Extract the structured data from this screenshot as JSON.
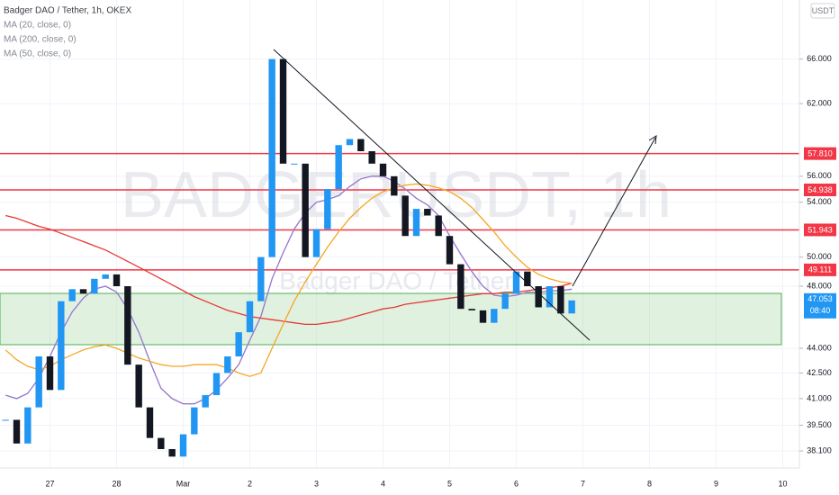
{
  "chart_data": {
    "type": "candlestick",
    "log_scale": true,
    "grid": true,
    "grid_color": "#f0f3fa",
    "watermark": {
      "symbol": "BADGERUSDT, 1h",
      "description": "Badger DAO / Tether"
    },
    "currency": "USDT",
    "countdown": "08:40",
    "ylim": [
      37.2,
      71.7
    ],
    "yticks": [
      {
        "value": 66,
        "label": "66.000"
      },
      {
        "value": 62,
        "label": "62.000"
      },
      {
        "value": 56,
        "label": "56.000"
      },
      {
        "value": 54,
        "label": "54.000"
      },
      {
        "value": 50,
        "label": "50.000"
      },
      {
        "value": 48,
        "label": "48.000"
      },
      {
        "value": 44,
        "label": "44.000"
      },
      {
        "value": 42.5,
        "label": "42.500"
      },
      {
        "value": 41,
        "label": "41.000"
      },
      {
        "value": 39.5,
        "label": "39.500"
      },
      {
        "value": 38.1,
        "label": "38.100"
      }
    ],
    "levels": [
      {
        "value": 57.81,
        "label": "57.810"
      },
      {
        "value": 54.938,
        "label": "54.938"
      },
      {
        "value": 51.943,
        "label": "51.943"
      },
      {
        "value": 49.111,
        "label": "49.111"
      }
    ],
    "level_color": "#f23645",
    "categories": [
      null,
      null,
      null,
      null,
      "27",
      null,
      null,
      null,
      null,
      null,
      "28",
      null,
      null,
      null,
      null,
      null,
      "Mar",
      null,
      null,
      null,
      null,
      null,
      "2",
      null,
      null,
      null,
      null,
      null,
      "3",
      null,
      null,
      null,
      null,
      null,
      "4",
      null,
      null,
      null,
      null,
      null,
      "5",
      null,
      null,
      null,
      null,
      null,
      "6",
      null,
      null,
      null,
      null,
      null,
      "7",
      null,
      null,
      null,
      null,
      null,
      "8",
      null,
      null,
      null,
      null,
      null,
      "9",
      null,
      null,
      null,
      null,
      null,
      "10",
      null
    ],
    "series": [
      {
        "name": "Badger DAO / Tether, 1h, OKEX",
        "up_color": "#2196f3",
        "down_color": "#131722",
        "values": [
          39.8,
          38.5,
          40.5,
          43.5,
          41.5,
          47,
          47.8,
          47.5,
          48.5,
          48.8,
          48,
          43,
          40.5,
          38.8,
          38.2,
          37.8,
          39,
          40.5,
          41.2,
          42.5,
          43.5,
          45,
          47,
          50,
          66,
          57,
          57,
          50,
          52,
          55,
          58.5,
          59,
          58,
          57,
          56,
          54.5,
          51.5,
          53.5,
          53,
          51.5,
          49.5,
          46.5,
          46.4,
          45.6,
          46.5,
          47.5,
          49,
          48,
          46.6,
          48,
          46.2,
          47.053,
          null,
          null,
          null,
          null,
          null,
          null,
          null,
          null,
          null,
          null,
          null,
          null,
          null,
          null,
          null,
          null,
          null,
          null,
          null,
          null
        ]
      },
      {
        "name": "MA (20, close, 0)",
        "color": "#9575cd",
        "values": [
          41.2,
          41,
          41.3,
          42.2,
          43.5,
          45,
          46.3,
          47.2,
          47.8,
          48,
          47.6,
          46.5,
          45,
          43.2,
          41.6,
          41,
          40.7,
          40.7,
          41,
          41.5,
          42.2,
          43,
          44.5,
          46,
          48.5,
          50.3,
          52,
          53.2,
          54,
          54.2,
          54.5,
          55.2,
          55.8,
          56,
          56,
          55.6,
          55,
          54.3,
          53.8,
          53,
          51.5,
          50.2,
          49,
          48,
          47.4,
          47.3,
          47.4,
          47.6,
          47.6,
          47.7,
          47.7,
          47.8,
          null,
          null,
          null,
          null,
          null,
          null,
          null,
          null,
          null,
          null,
          null,
          null,
          null,
          null,
          null,
          null,
          null,
          null,
          null,
          null
        ]
      },
      {
        "name": "MA (200, close, 0)",
        "color": "#e53935",
        "values": [
          53,
          52.8,
          52.5,
          52.2,
          52,
          51.7,
          51.4,
          51.1,
          50.8,
          50.5,
          50.1,
          49.7,
          49.3,
          48.9,
          48.5,
          48.1,
          47.7,
          47.3,
          47,
          46.7,
          46.4,
          46.2,
          46,
          45.9,
          45.8,
          45.7,
          45.6,
          45.5,
          45.5,
          45.6,
          45.7,
          45.9,
          46.1,
          46.3,
          46.5,
          46.6,
          46.8,
          46.9,
          47,
          47.1,
          47.2,
          47.3,
          47.4,
          47.5,
          47.5,
          47.6,
          47.6,
          47.7,
          47.8,
          47.9,
          48,
          48.2,
          null,
          null,
          null,
          null,
          null,
          null,
          null,
          null,
          null,
          null,
          null,
          null,
          null,
          null,
          null,
          null,
          null,
          null,
          null,
          null
        ]
      },
      {
        "name": "MA (50, close, 0)",
        "color": "#f5a623",
        "values": [
          43.9,
          43.3,
          42.9,
          42.7,
          42.9,
          43.3,
          43.6,
          43.9,
          44.1,
          44.2,
          44,
          43.7,
          43.4,
          43.2,
          43,
          42.9,
          42.9,
          43,
          43,
          43,
          42.8,
          42.5,
          42.3,
          42.5,
          44,
          45.5,
          47,
          48.3,
          49.5,
          50.7,
          51.8,
          52.8,
          53.6,
          54.3,
          54.8,
          55.1,
          55.3,
          55.4,
          55.3,
          55.1,
          54.8,
          54.3,
          53.6,
          52.7,
          51.8,
          50.8,
          50,
          49.3,
          48.8,
          48.5,
          48.3,
          48.2,
          null,
          null,
          null,
          null,
          null,
          null,
          null,
          null,
          null,
          null,
          null,
          null,
          null,
          null,
          null,
          null,
          null,
          null,
          null,
          null
        ]
      }
    ]
  }
}
